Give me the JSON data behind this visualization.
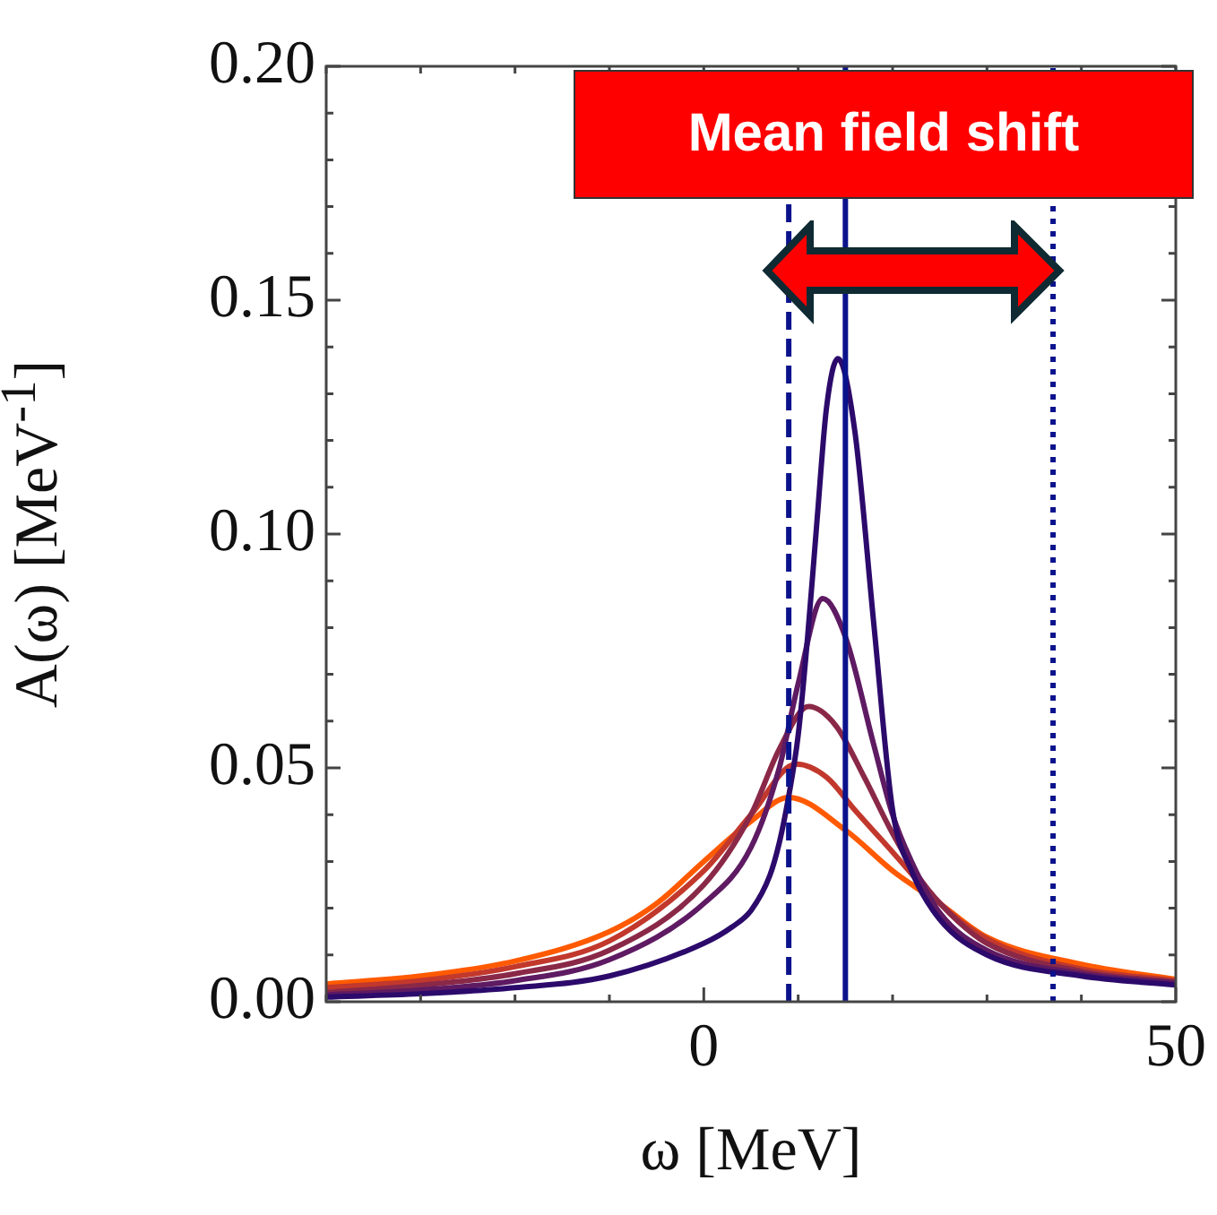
{
  "chart_data": {
    "type": "line",
    "xlabel": "ω [MeV]",
    "ylabel": "A(ω) [MeV$^{-1}$]",
    "annotations": [
      "Mean field shift"
    ],
    "marker": "none",
    "xlim": [
      -40,
      50
    ],
    "xticks": [
      {
        "value": -40,
        "label": null
      },
      {
        "value": -30,
        "label": null
      },
      {
        "value": -20,
        "label": null
      },
      {
        "value": -10,
        "label": null
      },
      0,
      {
        "value": 10,
        "label": null
      },
      {
        "value": 20,
        "label": null
      },
      {
        "value": 30,
        "label": null
      },
      {
        "value": 40,
        "label": null
      },
      50
    ],
    "ylim": [
      0,
      0.2
    ],
    "yticks": [
      {
        "value": 0,
        "label": "0.00"
      },
      {
        "value": 0.01,
        "label": null
      },
      {
        "value": 0.02,
        "label": null
      },
      {
        "value": 0.03,
        "label": null
      },
      {
        "value": 0.04,
        "label": null
      },
      {
        "value": 0.05,
        "label": "0.05"
      },
      {
        "value": 0.06,
        "label": null
      },
      {
        "value": 0.07,
        "label": null
      },
      {
        "value": 0.08,
        "label": null
      },
      {
        "value": 0.09,
        "label": null
      },
      {
        "value": 0.1,
        "label": "0.10"
      },
      {
        "value": 0.11,
        "label": null
      },
      {
        "value": 0.12,
        "label": null
      },
      {
        "value": 0.13,
        "label": null
      },
      {
        "value": 0.14,
        "label": null
      },
      {
        "value": 0.15,
        "label": "0.15"
      },
      {
        "value": 0.16,
        "label": null
      },
      {
        "value": 0.17,
        "label": null
      },
      {
        "value": 0.18,
        "label": null
      },
      {
        "value": 0.19,
        "label": null
      },
      {
        "value": 0.2,
        "label": "0.20"
      }
    ],
    "ref_lines": [
      {
        "axis": "x",
        "value": 9,
        "color": "#0a128c",
        "line_style": "dashed"
      },
      {
        "axis": "x",
        "value": 15,
        "color": "#0a128c",
        "line_style": "solid"
      },
      {
        "axis": "x",
        "value": 37,
        "color": "#0a128c",
        "line_style": "dotted"
      }
    ],
    "series": [
      {
        "color": "#2c0a6b",
        "x": [
          -40,
          -30,
          -20,
          -10,
          0,
          3,
          5,
          7,
          8,
          9,
          10,
          11,
          12,
          13,
          14.2,
          16,
          18,
          20,
          22,
          25,
          30,
          40,
          50
        ],
        "values": [
          0.001,
          0.0017,
          0.003,
          0.0055,
          0.0125,
          0.016,
          0.0195,
          0.027,
          0.034,
          0.044,
          0.057,
          0.078,
          0.103,
          0.127,
          0.1375,
          0.122,
          0.081,
          0.041,
          0.028,
          0.0176,
          0.01,
          0.0055,
          0.0036
        ]
      },
      {
        "color": "#5e1a62",
        "x": [
          -40,
          -30,
          -20,
          -10,
          0,
          5,
          8,
          10,
          12.6,
          15,
          18,
          20,
          22,
          25,
          30,
          40,
          50
        ],
        "values": [
          0.0015,
          0.0025,
          0.0045,
          0.009,
          0.021,
          0.033,
          0.05,
          0.068,
          0.0862,
          0.078,
          0.055,
          0.04,
          0.03,
          0.019,
          0.011,
          0.006,
          0.004
        ]
      },
      {
        "color": "#8a2848",
        "x": [
          -40,
          -30,
          -20,
          -10,
          0,
          5,
          8,
          11.1,
          14,
          17,
          20,
          23,
          26,
          30,
          40,
          50
        ],
        "values": [
          0.002,
          0.0035,
          0.006,
          0.011,
          0.025,
          0.04,
          0.054,
          0.0631,
          0.059,
          0.048,
          0.036,
          0.026,
          0.019,
          0.0125,
          0.0065,
          0.0042
        ]
      },
      {
        "color": "#c2382c",
        "x": [
          -40,
          -30,
          -20,
          -10,
          0,
          5,
          9.8,
          13,
          16,
          20,
          24,
          28,
          32,
          40,
          50
        ],
        "values": [
          0.003,
          0.0045,
          0.0075,
          0.013,
          0.028,
          0.04,
          0.0508,
          0.048,
          0.041,
          0.032,
          0.023,
          0.016,
          0.0115,
          0.007,
          0.0045
        ]
      },
      {
        "color": "#ff5a00",
        "x": [
          -40,
          -30,
          -20,
          -10,
          -5,
          0,
          5,
          9,
          15,
          20,
          25,
          30,
          40,
          50
        ],
        "values": [
          0.0038,
          0.0055,
          0.0087,
          0.015,
          0.021,
          0.03,
          0.0386,
          0.0437,
          0.0367,
          0.028,
          0.021,
          0.0138,
          0.008,
          0.0048
        ]
      }
    ]
  }
}
